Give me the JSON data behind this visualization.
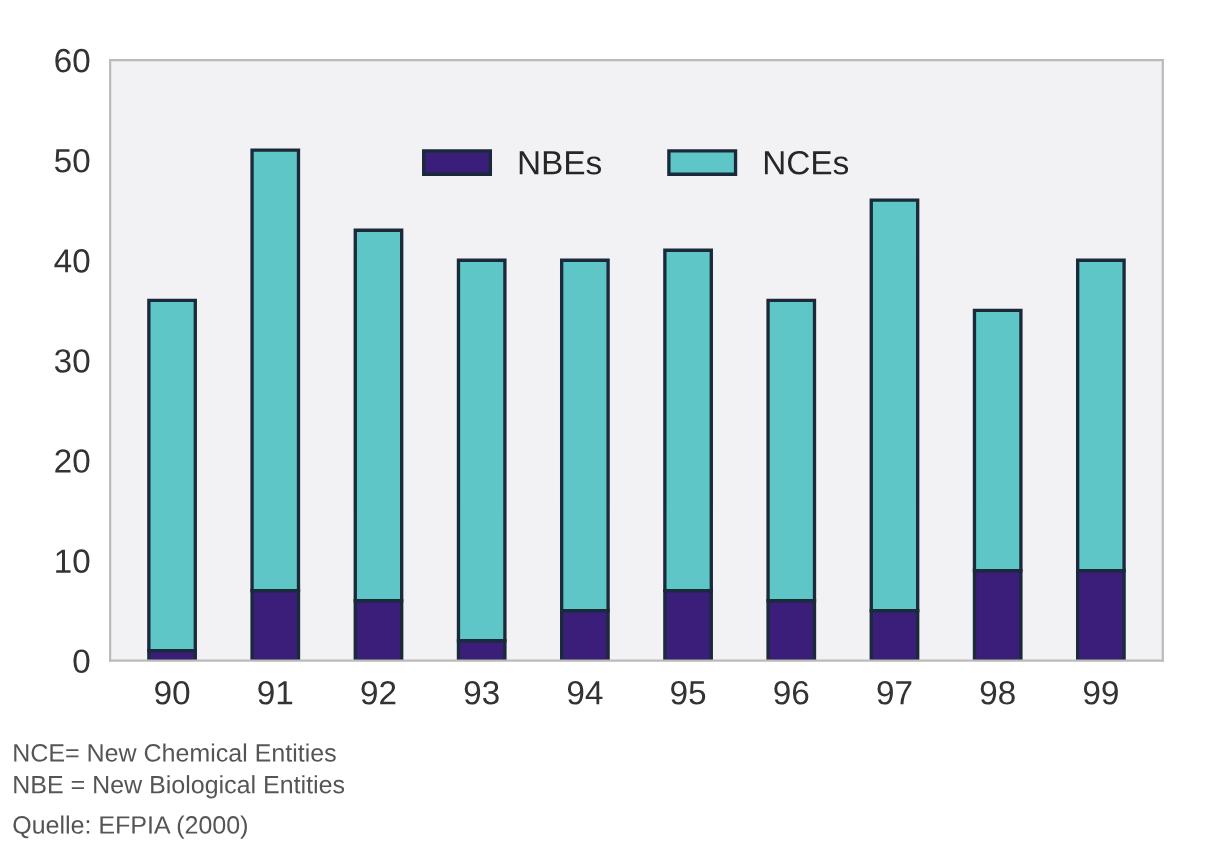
{
  "chart_data": {
    "type": "bar",
    "stacked": true,
    "categories": [
      "90",
      "91",
      "92",
      "93",
      "94",
      "95",
      "96",
      "97",
      "98",
      "99"
    ],
    "series": [
      {
        "name": "NBEs",
        "color": "#3b1d7a",
        "values": [
          1,
          7,
          6,
          2,
          5,
          7,
          6,
          5,
          9,
          9
        ]
      },
      {
        "name": "NCEs",
        "color": "#5ec6c6",
        "values": [
          35,
          44,
          37,
          38,
          35,
          34,
          30,
          41,
          26,
          31
        ]
      }
    ],
    "ylim": [
      0,
      60
    ],
    "yticks": [
      0,
      10,
      20,
      30,
      40,
      50,
      60
    ],
    "grid": false,
    "legend": "top",
    "annotations": [
      "NCE= New Chemical Entities",
      "NBE = New Biological Entities",
      "Quelle: EFPIA (2000)"
    ]
  }
}
